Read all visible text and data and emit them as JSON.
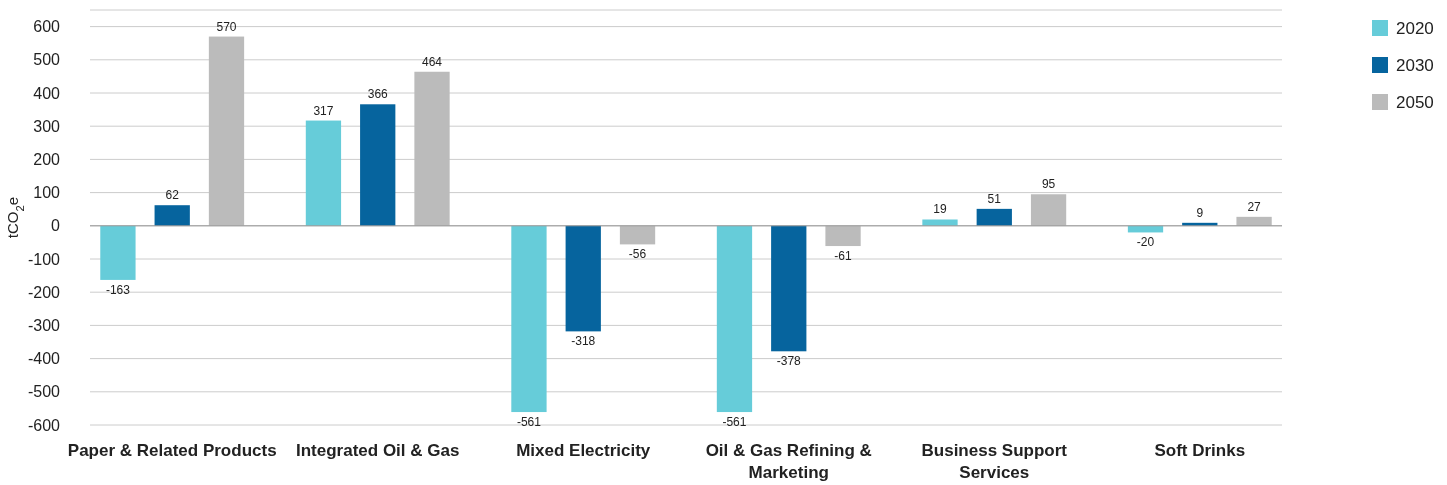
{
  "chart_data": {
    "type": "bar",
    "ylabel": "tCO$_{2}$e",
    "categories": [
      "Paper & Related Products",
      "Integrated Oil & Gas",
      "Mixed Electricity",
      "Oil & Gas Refining & Marketing",
      "Business Support Services",
      "Soft Drinks"
    ],
    "series": [
      {
        "name": "2020",
        "color": "#66ccd9",
        "values": [
          -163,
          317,
          -561,
          -561,
          19,
          -20
        ]
      },
      {
        "name": "2030",
        "color": "#06649e",
        "values": [
          62,
          366,
          -318,
          -378,
          51,
          9
        ]
      },
      {
        "name": "2050",
        "color": "#bbbbbb",
        "values": [
          570,
          464,
          -56,
          -61,
          95,
          27
        ]
      }
    ],
    "ylim": [
      -600,
      650
    ],
    "yticks": [
      -600,
      -500,
      -400,
      -300,
      -200,
      -100,
      0,
      100,
      200,
      300,
      400,
      500,
      600
    ],
    "grid": "y",
    "legend": "top right",
    "data_labels": true
  }
}
